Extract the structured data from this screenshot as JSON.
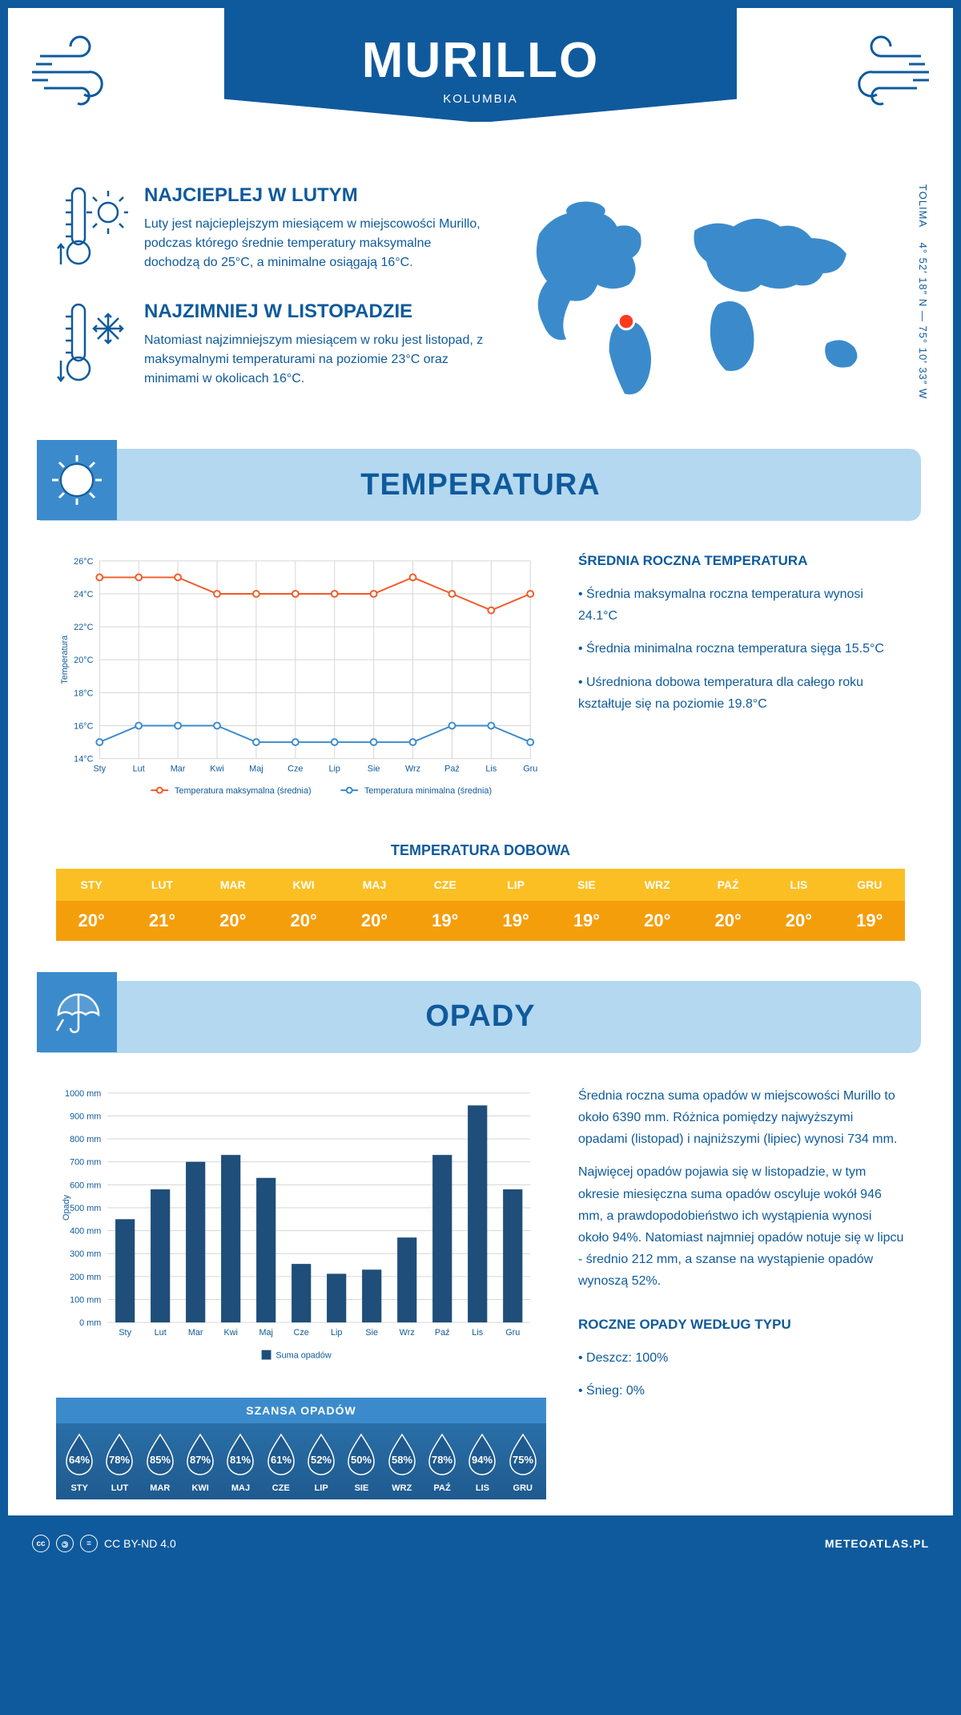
{
  "colors": {
    "brand": "#0f5a9c",
    "bandLight": "#b4d8f0",
    "bandIcon": "#3b8bcc",
    "tempMax": "#f15a29",
    "tempMin": "#3b8bcc",
    "tableHead": "#fbbf24",
    "tableBody": "#f59e0b",
    "barFill": "#1e4e79",
    "dropFill": "#1e5a8f",
    "grid": "#d6d6d6",
    "white": "#ffffff"
  },
  "header": {
    "title": "MURILLO",
    "subtitle": "KOLUMBIA"
  },
  "coords": {
    "line1": "4° 52′ 18″ N — 75° 10′ 33″ W",
    "line2": "TOLIMA"
  },
  "intro": {
    "warm": {
      "title": "NAJCIEPLEJ W LUTYM",
      "text": "Luty jest najcieplejszym miesiącem w miejscowości Murillo, podczas którego średnie temperatury maksymalne dochodzą do 25°C, a minimalne osiągają 16°C."
    },
    "cold": {
      "title": "NAJZIMNIEJ W LISTOPADZIE",
      "text": "Natomiast najzimniejszym miesiącem w roku jest listopad, z maksymalnymi temperaturami na poziomie 23°C oraz minimami w okolicach 16°C."
    }
  },
  "months": [
    "Sty",
    "Lut",
    "Mar",
    "Kwi",
    "Maj",
    "Cze",
    "Lip",
    "Sie",
    "Wrz",
    "Paź",
    "Lis",
    "Gru"
  ],
  "monthsUpper": [
    "STY",
    "LUT",
    "MAR",
    "KWI",
    "MAJ",
    "CZE",
    "LIP",
    "SIE",
    "WRZ",
    "PAŹ",
    "LIS",
    "GRU"
  ],
  "temperature": {
    "sectionTitle": "TEMPERATURA",
    "chart": {
      "type": "line",
      "ylabel": "Temperatura",
      "ylim": [
        14,
        26
      ],
      "ytick_step": 2,
      "ytick_suffix": "°C",
      "grid_color": "#d6d6d6",
      "series": [
        {
          "name": "Temperatura maksymalna (średnia)",
          "color": "#f15a29",
          "values": [
            25,
            25,
            25,
            24,
            24,
            24,
            24,
            24,
            25,
            24,
            23,
            24
          ]
        },
        {
          "name": "Temperatura minimalna (średnia)",
          "color": "#3b8bcc",
          "values": [
            15,
            16,
            16,
            16,
            15,
            15,
            15,
            15,
            15,
            16,
            16,
            15
          ]
        }
      ],
      "label_fontsize": 11
    },
    "side": {
      "title": "ŚREDNIA ROCZNA TEMPERATURA",
      "points": [
        "Średnia maksymalna roczna temperatura wynosi 24.1°C",
        "Średnia minimalna roczna temperatura sięga 15.5°C",
        "Uśredniona dobowa temperatura dla całego roku kształtuje się na poziomie 19.8°C"
      ]
    },
    "dailyTitle": "TEMPERATURA DOBOWA",
    "dailyValues": [
      "20°",
      "21°",
      "20°",
      "20°",
      "20°",
      "19°",
      "19°",
      "19°",
      "20°",
      "20°",
      "20°",
      "19°"
    ]
  },
  "precip": {
    "sectionTitle": "OPADY",
    "chart": {
      "type": "bar",
      "ylabel": "Opady",
      "ylim": [
        0,
        1000
      ],
      "ytick_step": 100,
      "ytick_suffix": " mm",
      "bar_color": "#1e4e79",
      "bar_width": 0.55,
      "values": [
        450,
        580,
        700,
        730,
        630,
        255,
        212,
        230,
        370,
        730,
        946,
        580
      ],
      "legendLabel": "Suma opadów",
      "label_fontsize": 11
    },
    "sideText1": "Średnia roczna suma opadów w miejscowości Murillo to około 6390 mm. Różnica pomiędzy najwyższymi opadami (listopad) i najniższymi (lipiec) wynosi 734 mm.",
    "sideText2": "Najwięcej opadów pojawia się w listopadzie, w tym okresie miesięczna suma opadów oscyluje wokół 946 mm, a prawdopodobieństwo ich wystąpienia wynosi około 94%. Natomiast najmniej opadów notuje się w lipcu - średnio 212 mm, a szanse na wystąpienie opadów wynoszą 52%.",
    "probTitle": "SZANSA OPADÓW",
    "probValues": [
      "64%",
      "78%",
      "85%",
      "87%",
      "81%",
      "61%",
      "52%",
      "50%",
      "58%",
      "78%",
      "94%",
      "75%"
    ],
    "typeTitle": "ROCZNE OPADY WEDŁUG TYPU",
    "typePoints": [
      "Deszcz: 100%",
      "Śnieg: 0%"
    ]
  },
  "footer": {
    "license": "CC BY-ND 4.0",
    "brand": "METEOATLAS.PL"
  }
}
